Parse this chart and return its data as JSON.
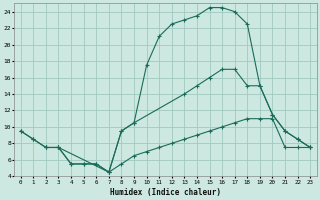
{
  "xlabel": "Humidex (Indice chaleur)",
  "background_color": "#cce8e0",
  "grid_color": "#a0c8c0",
  "line_color": "#1a6b5a",
  "xlim": [
    -0.5,
    23.5
  ],
  "ylim": [
    4,
    25
  ],
  "xticks": [
    0,
    1,
    2,
    3,
    4,
    5,
    6,
    7,
    8,
    9,
    10,
    11,
    12,
    13,
    14,
    15,
    16,
    17,
    18,
    19,
    20,
    21,
    22,
    23
  ],
  "yticks": [
    4,
    6,
    8,
    10,
    12,
    14,
    16,
    18,
    20,
    22,
    24
  ],
  "series": [
    {
      "x": [
        0,
        1,
        2,
        3,
        4,
        5,
        6,
        7,
        8,
        9,
        10,
        11,
        12,
        13,
        14,
        15,
        16,
        17,
        18,
        19,
        20,
        21,
        22,
        23
      ],
      "y": [
        9.5,
        8.5,
        7.5,
        7.5,
        5.5,
        5.5,
        5.5,
        4.5,
        9.5,
        10.5,
        17.5,
        21,
        22.5,
        23,
        23.5,
        24.5,
        24.5,
        24,
        22.5,
        15,
        11.5,
        9.5,
        8.5,
        7.5
      ]
    },
    {
      "x": [
        0,
        1,
        2,
        3,
        4,
        5,
        6,
        7,
        8,
        9,
        10,
        11,
        12,
        13,
        14,
        15,
        16,
        17,
        18,
        19,
        20,
        21,
        22,
        23
      ],
      "y": [
        9.5,
        8.5,
        7.5,
        7.5,
        5.5,
        5.5,
        5.5,
        4.5,
        5.5,
        6.5,
        7,
        7.5,
        8,
        8.5,
        9,
        9.5,
        10,
        10.5,
        11,
        11,
        11,
        7.5,
        7.5,
        7.5
      ]
    },
    {
      "x": [
        2,
        3,
        7,
        8,
        9,
        13,
        14,
        15,
        16,
        17,
        18,
        19,
        20,
        21,
        22,
        23
      ],
      "y": [
        7.5,
        7.5,
        4.5,
        9.5,
        10.5,
        14,
        15,
        16,
        17,
        17,
        15,
        15,
        11.5,
        9.5,
        8.5,
        7.5
      ]
    }
  ]
}
